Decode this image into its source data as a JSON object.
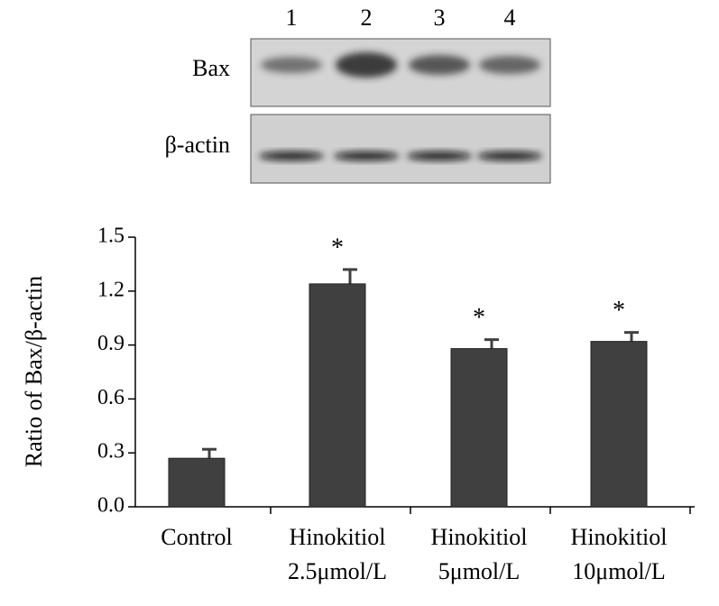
{
  "blot": {
    "lanes": [
      "1",
      "2",
      "3",
      "4"
    ],
    "rows": [
      "Bax",
      "β-actin"
    ]
  },
  "chart_data": {
    "type": "bar",
    "y_label": "Ratio of Bax/β-actin",
    "categories": [
      [
        "Control"
      ],
      [
        "Hinokitiol",
        "2.5μmol/L"
      ],
      [
        "Hinokitiol",
        "5μmol/L"
      ],
      [
        "Hinokitiol",
        "10μmol/L"
      ]
    ],
    "values": [
      0.27,
      1.24,
      0.88,
      0.92
    ],
    "errors": [
      0.05,
      0.08,
      0.05,
      0.05
    ],
    "markers": [
      null,
      "*",
      "*",
      "*"
    ],
    "color": "#404040",
    "ylim": [
      0,
      1.5
    ],
    "yticks": [
      {
        "value": 0,
        "label": "0.0"
      },
      0.3,
      0.6,
      0.9,
      1.2,
      1.5
    ]
  }
}
